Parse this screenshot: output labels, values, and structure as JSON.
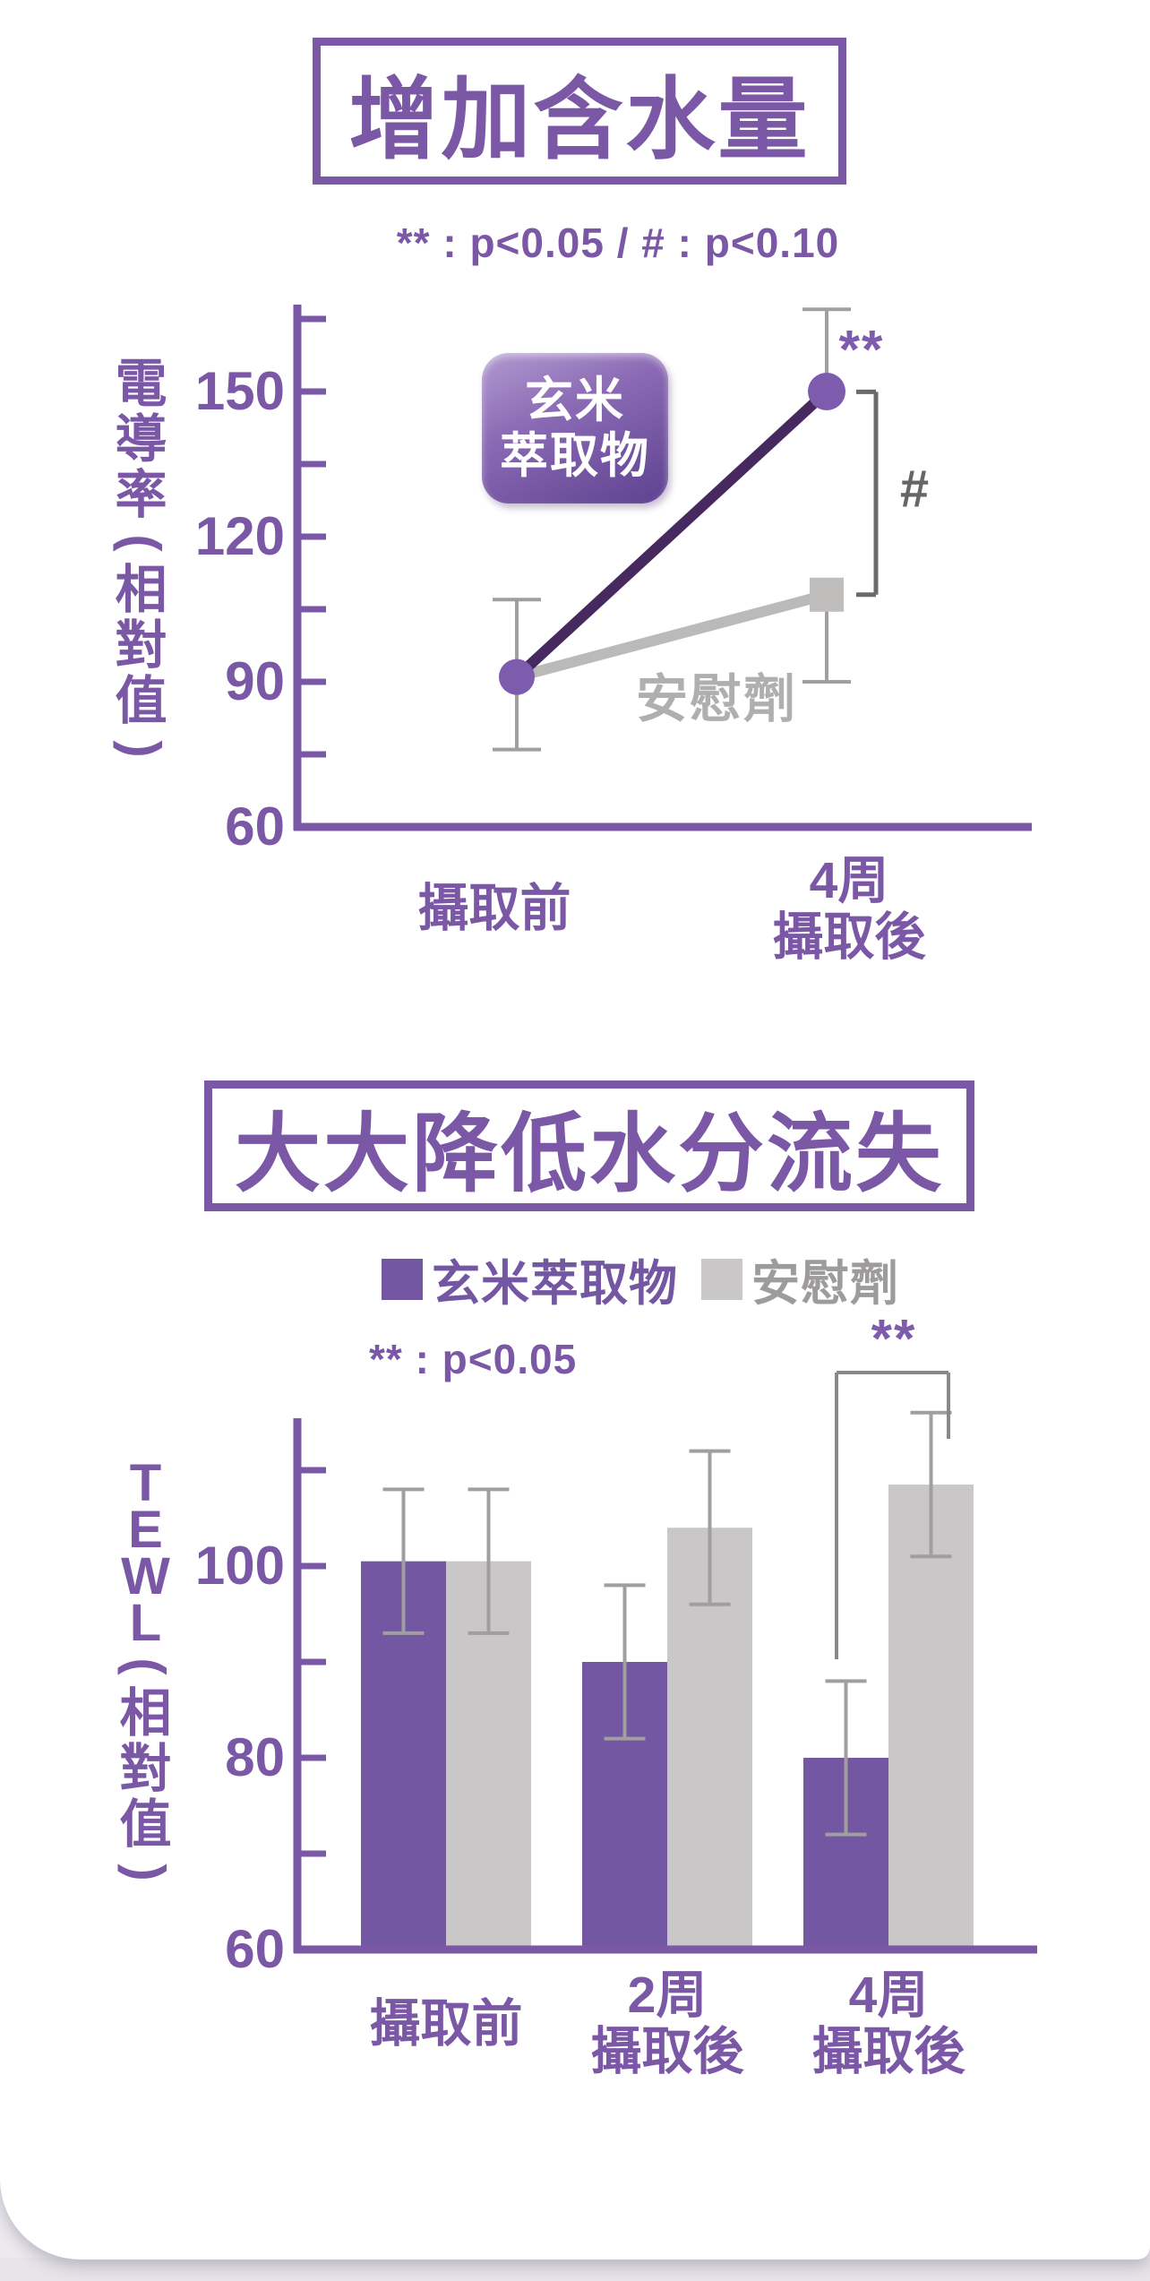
{
  "colors": {
    "purple_ui": "#7a58a5",
    "purple_bar": "#7457a3",
    "purple_marker": "#7d5cad",
    "purple_line_dark": "#46295f",
    "gray_bar": "#c9c7c7",
    "gray_line": "#bcb9b9",
    "gray_text": "#b1aeae",
    "legend_gray_text": "#9e9b9b",
    "error_bar_gray": "#a19e9e",
    "bracket_gray": "#6b6969",
    "bracket_gray_light": "#8a8888"
  },
  "chart_data": [
    {
      "type": "line",
      "title": "增加含水量",
      "sig_note": "** : p<0.05 /  # : p<0.10",
      "ylabel": "電導率(相對值)",
      "xlabel": "",
      "categories": [
        "攝取前",
        "4周攝取後"
      ],
      "category_lines": [
        [
          "攝取前"
        ],
        [
          "4周",
          "攝取後"
        ]
      ],
      "ylim": [
        60,
        168
      ],
      "yticks_labeled": [
        60,
        90,
        120,
        150
      ],
      "yticks_minor": [
        75,
        105,
        135,
        165
      ],
      "grid": "off",
      "series": [
        {
          "name": "玄米萃取物",
          "marker": "circle",
          "marker_color": "#7d5cad",
          "line_color": "#46295f",
          "values": [
            91,
            150
          ],
          "error_low": [
            76,
            null
          ],
          "error_high": [
            107,
            167
          ]
        },
        {
          "name": "安慰劑",
          "marker": "square",
          "marker_color": "#c0bdbd",
          "line_color": "#bcb9b9",
          "values": [
            91,
            108
          ],
          "error_low": [
            null,
            90
          ],
          "error_high": [
            null,
            null
          ]
        }
      ],
      "badge": {
        "line1": "玄米",
        "line2": "萃取物"
      },
      "series_inline_label": "安慰劑",
      "annotations": {
        "sig_marker": "**",
        "sig_on": "玄米萃取物 @ 4周攝取後",
        "bracket_label": "#",
        "bracket_between_values": [
          149,
          108
        ]
      }
    },
    {
      "type": "bar",
      "title": "大大降低水分流失",
      "sig_note": "** : p<0.05",
      "ylabel": "TEWL(相對值)",
      "xlabel": "",
      "categories": [
        "攝取前",
        "2周攝取後",
        "4周攝取後"
      ],
      "category_lines": [
        [
          "攝取前"
        ],
        [
          "2周",
          "攝取後"
        ],
        [
          "4周",
          "攝取後"
        ]
      ],
      "ylim": [
        60,
        112
      ],
      "yticks_labeled": [
        60,
        80,
        100
      ],
      "yticks_minor": [
        70,
        90,
        110
      ],
      "grid": "off",
      "legend": [
        {
          "label": "玄米萃取物",
          "color": "#7457a3"
        },
        {
          "label": "安慰劑",
          "color": "#c9c7c7"
        }
      ],
      "legend_position": "top",
      "series": [
        {
          "name": "玄米萃取物",
          "color": "#7457a3",
          "values": [
            100.5,
            90,
            80
          ],
          "error_low": [
            93,
            82,
            72
          ],
          "error_high": [
            108,
            98,
            88
          ]
        },
        {
          "name": "安慰劑",
          "color": "#c9c7c7",
          "values": [
            100.5,
            104,
            108.5
          ],
          "error_low": [
            93,
            96,
            101
          ],
          "error_high": [
            108,
            112,
            116
          ]
        }
      ],
      "annotations": {
        "sig_marker": "**",
        "bracket_between_series": [
          "玄米萃取物",
          "安慰劑"
        ],
        "bracket_on_category": "4周攝取後"
      }
    }
  ]
}
